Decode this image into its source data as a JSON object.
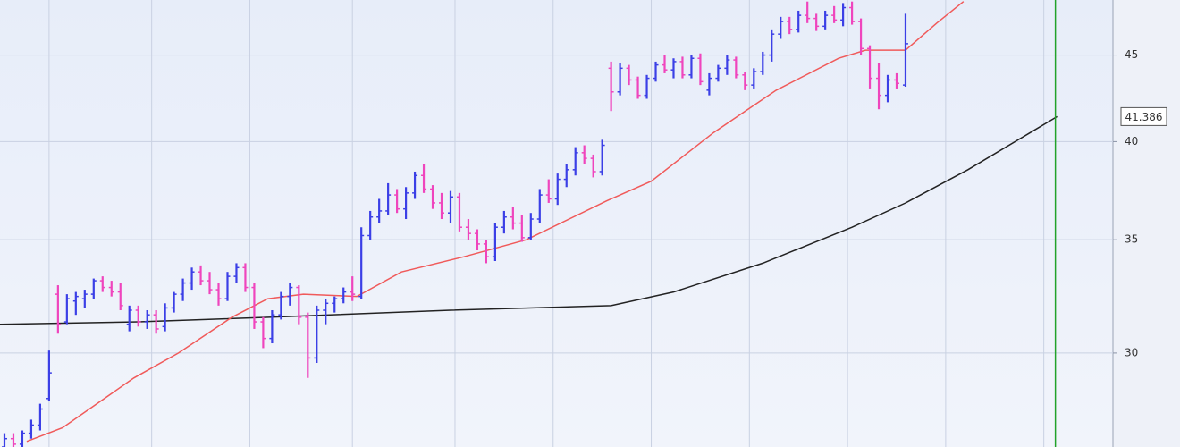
{
  "chart_data": {
    "type": "ohlc",
    "log_scale": true,
    "grid": true,
    "xlim": [
      -0.5,
      124.25
    ],
    "ylim": [
      26.4,
      48.5
    ],
    "yticks": [
      30,
      35,
      40,
      45
    ],
    "xgrid": [
      5,
      16.5,
      27.5,
      39,
      50.5,
      61.5,
      72.5,
      83.5,
      94.5,
      105.5,
      116.5
    ],
    "cursor_x": 117.8,
    "cursor_color": "#22a22a",
    "up_color": "#3b3fe6",
    "down_color": "#ef45bd",
    "ohlc": [
      [
        26.4,
        26.9,
        26.3,
        26.7
      ],
      [
        26.7,
        26.9,
        26.4,
        26.5
      ],
      [
        26.5,
        27.0,
        26.4,
        26.9
      ],
      [
        26.9,
        27.4,
        26.7,
        27.2
      ],
      [
        27.2,
        28.0,
        27.0,
        27.8
      ],
      [
        28.2,
        30.1,
        28.1,
        29.2
      ],
      [
        32.5,
        32.9,
        30.8,
        31.2
      ],
      [
        31.3,
        32.5,
        31.2,
        32.3
      ],
      [
        32.2,
        32.6,
        31.6,
        32.4
      ],
      [
        32.3,
        32.7,
        31.9,
        32.5
      ],
      [
        32.5,
        33.2,
        32.3,
        33.1
      ],
      [
        33.1,
        33.3,
        32.6,
        32.8
      ],
      [
        32.8,
        33.1,
        32.4,
        32.6
      ],
      [
        32.6,
        33.0,
        31.8,
        32.0
      ],
      [
        31.2,
        32.0,
        30.9,
        31.8
      ],
      [
        31.8,
        32.0,
        31.1,
        31.3
      ],
      [
        31.3,
        31.8,
        31.0,
        31.6
      ],
      [
        31.6,
        31.8,
        30.8,
        31.0
      ],
      [
        31.1,
        32.1,
        30.9,
        31.9
      ],
      [
        31.9,
        32.6,
        31.7,
        32.5
      ],
      [
        32.5,
        33.2,
        32.2,
        33.0
      ],
      [
        33.0,
        33.7,
        32.7,
        33.5
      ],
      [
        33.5,
        33.8,
        32.9,
        33.1
      ],
      [
        33.1,
        33.5,
        32.5,
        32.7
      ],
      [
        32.7,
        33.0,
        32.0,
        32.3
      ],
      [
        32.3,
        33.5,
        32.2,
        33.3
      ],
      [
        33.3,
        33.9,
        33.0,
        33.7
      ],
      [
        33.7,
        33.9,
        32.6,
        32.8
      ],
      [
        32.8,
        33.0,
        31.0,
        31.3
      ],
      [
        31.3,
        31.5,
        30.2,
        30.6
      ],
      [
        30.6,
        31.8,
        30.4,
        31.6
      ],
      [
        31.6,
        32.6,
        31.4,
        32.4
      ],
      [
        32.4,
        33.0,
        32.0,
        32.8
      ],
      [
        32.8,
        32.9,
        31.2,
        31.5
      ],
      [
        31.5,
        31.7,
        29.0,
        29.8
      ],
      [
        29.8,
        32.0,
        29.6,
        31.8
      ],
      [
        31.8,
        32.3,
        31.2,
        32.1
      ],
      [
        32.1,
        32.4,
        31.7,
        32.3
      ],
      [
        32.3,
        32.8,
        32.1,
        32.6
      ],
      [
        32.6,
        33.3,
        32.2,
        32.5
      ],
      [
        32.4,
        35.6,
        32.3,
        35.2
      ],
      [
        35.2,
        36.4,
        35.0,
        36.1
      ],
      [
        36.1,
        37.0,
        35.8,
        36.4
      ],
      [
        36.4,
        37.8,
        36.2,
        37.2
      ],
      [
        37.2,
        37.5,
        36.3,
        36.5
      ],
      [
        36.5,
        37.6,
        36.0,
        37.3
      ],
      [
        37.3,
        38.4,
        37.0,
        38.2
      ],
      [
        38.2,
        38.8,
        37.3,
        37.5
      ],
      [
        37.5,
        37.7,
        36.5,
        36.8
      ],
      [
        36.8,
        37.3,
        36.0,
        36.3
      ],
      [
        36.3,
        37.4,
        35.8,
        37.1
      ],
      [
        37.1,
        37.3,
        35.4,
        35.6
      ],
      [
        35.6,
        36.0,
        35.0,
        35.3
      ],
      [
        35.3,
        35.5,
        34.5,
        34.8
      ],
      [
        34.8,
        35.0,
        33.9,
        34.2
      ],
      [
        34.2,
        35.8,
        34.0,
        35.6
      ],
      [
        35.6,
        36.4,
        35.3,
        36.1
      ],
      [
        36.1,
        36.6,
        35.5,
        35.8
      ],
      [
        35.8,
        36.2,
        34.9,
        35.1
      ],
      [
        35.1,
        36.3,
        35.0,
        36.0
      ],
      [
        36.0,
        37.5,
        35.8,
        37.2
      ],
      [
        37.2,
        38.0,
        36.8,
        37.0
      ],
      [
        37.0,
        38.3,
        36.7,
        38.0
      ],
      [
        38.0,
        38.8,
        37.6,
        38.5
      ],
      [
        38.5,
        39.7,
        38.2,
        39.4
      ],
      [
        39.4,
        39.8,
        38.8,
        39.1
      ],
      [
        39.1,
        39.3,
        38.1,
        38.4
      ],
      [
        38.4,
        40.1,
        38.2,
        39.8
      ],
      [
        44.2,
        44.6,
        41.7,
        42.8
      ],
      [
        42.8,
        44.5,
        42.6,
        44.2
      ],
      [
        44.2,
        44.4,
        43.2,
        43.5
      ],
      [
        43.5,
        43.7,
        42.4,
        42.6
      ],
      [
        42.6,
        43.8,
        42.4,
        43.6
      ],
      [
        43.6,
        44.6,
        43.4,
        44.4
      ],
      [
        44.4,
        45.0,
        43.9,
        44.1
      ],
      [
        44.1,
        44.8,
        43.6,
        44.6
      ],
      [
        44.6,
        44.9,
        43.6,
        43.8
      ],
      [
        43.8,
        45.0,
        43.6,
        44.8
      ],
      [
        44.8,
        45.1,
        43.2,
        43.4
      ],
      [
        42.9,
        43.9,
        42.6,
        43.6
      ],
      [
        43.6,
        44.4,
        43.4,
        44.2
      ],
      [
        44.2,
        45.0,
        43.8,
        44.7
      ],
      [
        44.7,
        44.9,
        43.6,
        43.8
      ],
      [
        43.8,
        44.0,
        42.9,
        43.2
      ],
      [
        43.2,
        44.2,
        43.0,
        44.0
      ],
      [
        44.0,
        45.2,
        43.8,
        45.0
      ],
      [
        45.0,
        46.6,
        44.6,
        46.3
      ],
      [
        46.3,
        47.4,
        46.0,
        47.1
      ],
      [
        47.1,
        47.4,
        46.3,
        46.6
      ],
      [
        46.6,
        47.8,
        46.4,
        47.5
      ],
      [
        47.5,
        48.4,
        47.0,
        47.3
      ],
      [
        47.3,
        47.6,
        46.5,
        46.8
      ],
      [
        46.8,
        47.8,
        46.6,
        47.5
      ],
      [
        47.5,
        48.1,
        47.0,
        47.2
      ],
      [
        47.2,
        48.3,
        46.8,
        48.0
      ],
      [
        48.0,
        48.4,
        46.9,
        47.1
      ],
      [
        47.1,
        47.3,
        45.0,
        45.4
      ],
      [
        45.4,
        45.6,
        43.0,
        43.6
      ],
      [
        43.6,
        44.5,
        41.8,
        42.6
      ],
      [
        42.6,
        43.8,
        42.2,
        43.5
      ],
      [
        43.5,
        43.9,
        43.0,
        43.3
      ],
      [
        43.2,
        47.6,
        43.1,
        45.7
      ]
    ],
    "ma_fast": {
      "color": "#f05a5a",
      "x": [
        2.5,
        6.5,
        14.5,
        19.5,
        25.5,
        29.5,
        33.5,
        39.5,
        44.5,
        51.5,
        58.5,
        67.5,
        72.5,
        79.5,
        86.5,
        93.5,
        96.5,
        101,
        104.5,
        107.5
      ],
      "values": [
        26.6,
        27.1,
        29.0,
        30.0,
        31.5,
        32.3,
        32.5,
        32.4,
        33.5,
        34.2,
        35.0,
        36.9,
        37.9,
        40.5,
        42.9,
        44.8,
        45.3,
        45.3,
        47.0,
        48.4
      ]
    },
    "ma_slow": {
      "color": "#222222",
      "x": [
        -0.5,
        15,
        30,
        50,
        68,
        75,
        85,
        95,
        101,
        108,
        115,
        118
      ],
      "values": [
        31.2,
        31.3,
        31.5,
        31.8,
        32.0,
        32.6,
        33.9,
        35.6,
        36.8,
        38.5,
        40.5,
        41.386
      ]
    }
  }
}
